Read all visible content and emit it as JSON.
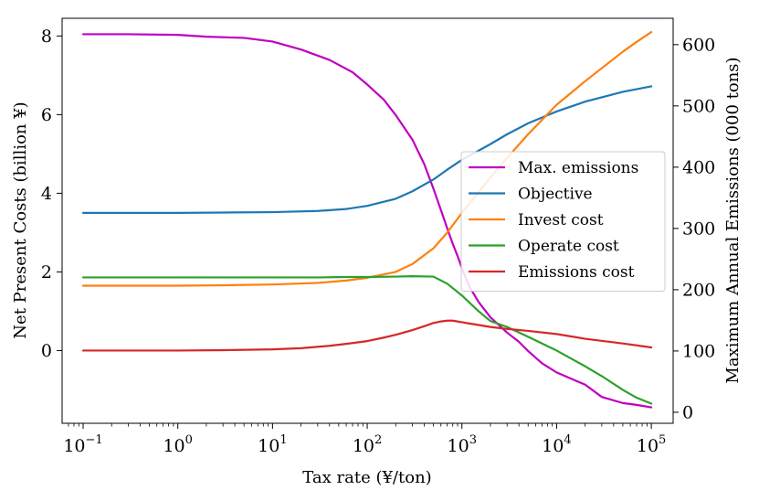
{
  "chart_data": {
    "type": "line",
    "x_scale": "log",
    "xlabel": "Tax rate (¥/ton)",
    "ylabel_left": "Net Present Costs (billion ¥)",
    "ylabel_right": "Maximum Annual Emissions (000 tons)",
    "xlim": [
      0.06,
      170000
    ],
    "ylim_left": [
      -1.85,
      8.45
    ],
    "ylim_right": [
      -18,
      643
    ],
    "x_ticks": [
      {
        "value": 0.1,
        "base": "10",
        "exp": "−1"
      },
      {
        "value": 1,
        "base": "10",
        "exp": "0"
      },
      {
        "value": 10,
        "base": "10",
        "exp": "1"
      },
      {
        "value": 100,
        "base": "10",
        "exp": "2"
      },
      {
        "value": 1000,
        "base": "10",
        "exp": "3"
      },
      {
        "value": 10000,
        "base": "10",
        "exp": "4"
      },
      {
        "value": 100000,
        "base": "10",
        "exp": "5"
      }
    ],
    "y_ticks_left": [
      {
        "value": 0,
        "label": "0"
      },
      {
        "value": 2,
        "label": "2"
      },
      {
        "value": 4,
        "label": "4"
      },
      {
        "value": 6,
        "label": "6"
      },
      {
        "value": 8,
        "label": "8"
      }
    ],
    "y_ticks_right": [
      {
        "value": 0,
        "label": "0"
      },
      {
        "value": 100,
        "label": "100"
      },
      {
        "value": 200,
        "label": "200"
      },
      {
        "value": 300,
        "label": "300"
      },
      {
        "value": 400,
        "label": "400"
      },
      {
        "value": 500,
        "label": "500"
      },
      {
        "value": 600,
        "label": "600"
      }
    ],
    "legend_position": "center-right",
    "series": [
      {
        "name": "Max. emissions",
        "axis": "right",
        "color": "#c000c0",
        "x": [
          0.1,
          0.3,
          1,
          2,
          5,
          10,
          20,
          40,
          70,
          100,
          150,
          200,
          300,
          400,
          500,
          600,
          700,
          800,
          900,
          1000,
          1200,
          1500,
          2000,
          3000,
          4000,
          5000,
          7000,
          10000,
          20000,
          30000,
          50000,
          70000,
          100000
        ],
        "values": [
          617,
          617,
          616,
          613,
          611,
          605,
          592,
          575,
          555,
          535,
          510,
          485,
          445,
          405,
          365,
          330,
          300,
          275,
          255,
          235,
          205,
          180,
          155,
          130,
          115,
          100,
          80,
          65,
          45,
          25,
          15,
          12,
          8
        ]
      },
      {
        "name": "Objective",
        "axis": "left",
        "color": "#1f77b4",
        "x": [
          0.1,
          0.3,
          1,
          3,
          10,
          30,
          60,
          100,
          200,
          300,
          500,
          700,
          1000,
          2000,
          3000,
          5000,
          10000,
          20000,
          50000,
          100000
        ],
        "values": [
          3.5,
          3.5,
          3.5,
          3.51,
          3.52,
          3.55,
          3.6,
          3.68,
          3.86,
          4.05,
          4.35,
          4.6,
          4.85,
          5.25,
          5.5,
          5.78,
          6.08,
          6.33,
          6.58,
          6.72
        ]
      },
      {
        "name": "Invest cost",
        "axis": "left",
        "color": "#ff7f0e",
        "x": [
          0.1,
          0.3,
          1,
          3,
          10,
          30,
          60,
          100,
          200,
          300,
          500,
          700,
          1000,
          2000,
          3000,
          5000,
          10000,
          20000,
          50000,
          70000,
          100000
        ],
        "values": [
          1.65,
          1.65,
          1.65,
          1.66,
          1.68,
          1.72,
          1.78,
          1.85,
          2.0,
          2.2,
          2.6,
          3.0,
          3.5,
          4.4,
          4.9,
          5.5,
          6.25,
          6.85,
          7.6,
          7.85,
          8.1
        ]
      },
      {
        "name": "Operate cost",
        "axis": "left",
        "color": "#2ca02c",
        "x": [
          0.1,
          0.3,
          1,
          3,
          10,
          30,
          60,
          100,
          200,
          300,
          500,
          700,
          1000,
          1500,
          2000,
          3000,
          5000,
          10000,
          20000,
          30000,
          50000,
          70000,
          100000
        ],
        "values": [
          1.86,
          1.86,
          1.86,
          1.86,
          1.86,
          1.86,
          1.87,
          1.87,
          1.88,
          1.89,
          1.88,
          1.7,
          1.4,
          1.0,
          0.75,
          0.6,
          0.35,
          0.0,
          -0.4,
          -0.65,
          -1.0,
          -1.2,
          -1.35
        ]
      },
      {
        "name": "Emissions cost",
        "axis": "left",
        "color": "#d62728",
        "x": [
          0.1,
          0.3,
          1,
          3,
          10,
          20,
          40,
          60,
          100,
          150,
          200,
          300,
          400,
          500,
          600,
          700,
          800,
          1000,
          1500,
          2000,
          3000,
          5000,
          10000,
          20000,
          50000,
          100000
        ],
        "values": [
          0.0,
          0.0,
          0.0,
          0.01,
          0.03,
          0.06,
          0.12,
          0.17,
          0.24,
          0.33,
          0.4,
          0.52,
          0.62,
          0.7,
          0.74,
          0.76,
          0.76,
          0.72,
          0.65,
          0.6,
          0.55,
          0.5,
          0.42,
          0.3,
          0.18,
          0.08
        ]
      }
    ]
  }
}
